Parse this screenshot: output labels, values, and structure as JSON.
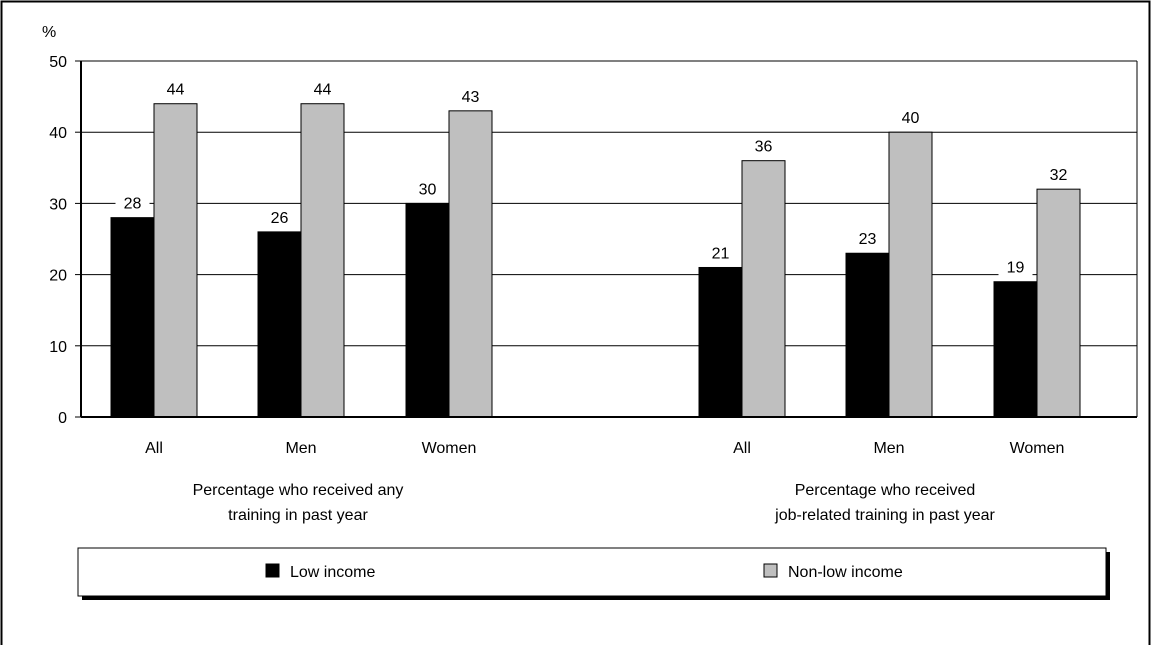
{
  "chart_data": {
    "type": "bar",
    "ylabel": "%",
    "ylim": [
      0,
      50
    ],
    "yticks": [
      0,
      10,
      20,
      30,
      40,
      50
    ],
    "grid": true,
    "legend_position": "bottom",
    "groups": [
      {
        "label_lines": [
          "Percentage who received any",
          "training in past year"
        ],
        "categories": [
          "All",
          "Men",
          "Women"
        ]
      },
      {
        "label_lines": [
          "Percentage who received",
          "job-related training in past year"
        ],
        "categories": [
          "All",
          "Men",
          "Women"
        ]
      }
    ],
    "series": [
      {
        "name": "Low income",
        "color": "#000000",
        "values": [
          28,
          26,
          30,
          21,
          23,
          19
        ]
      },
      {
        "name": "Non-low income",
        "color": "#bfbfbf",
        "values": [
          44,
          44,
          43,
          36,
          40,
          32
        ]
      }
    ]
  }
}
